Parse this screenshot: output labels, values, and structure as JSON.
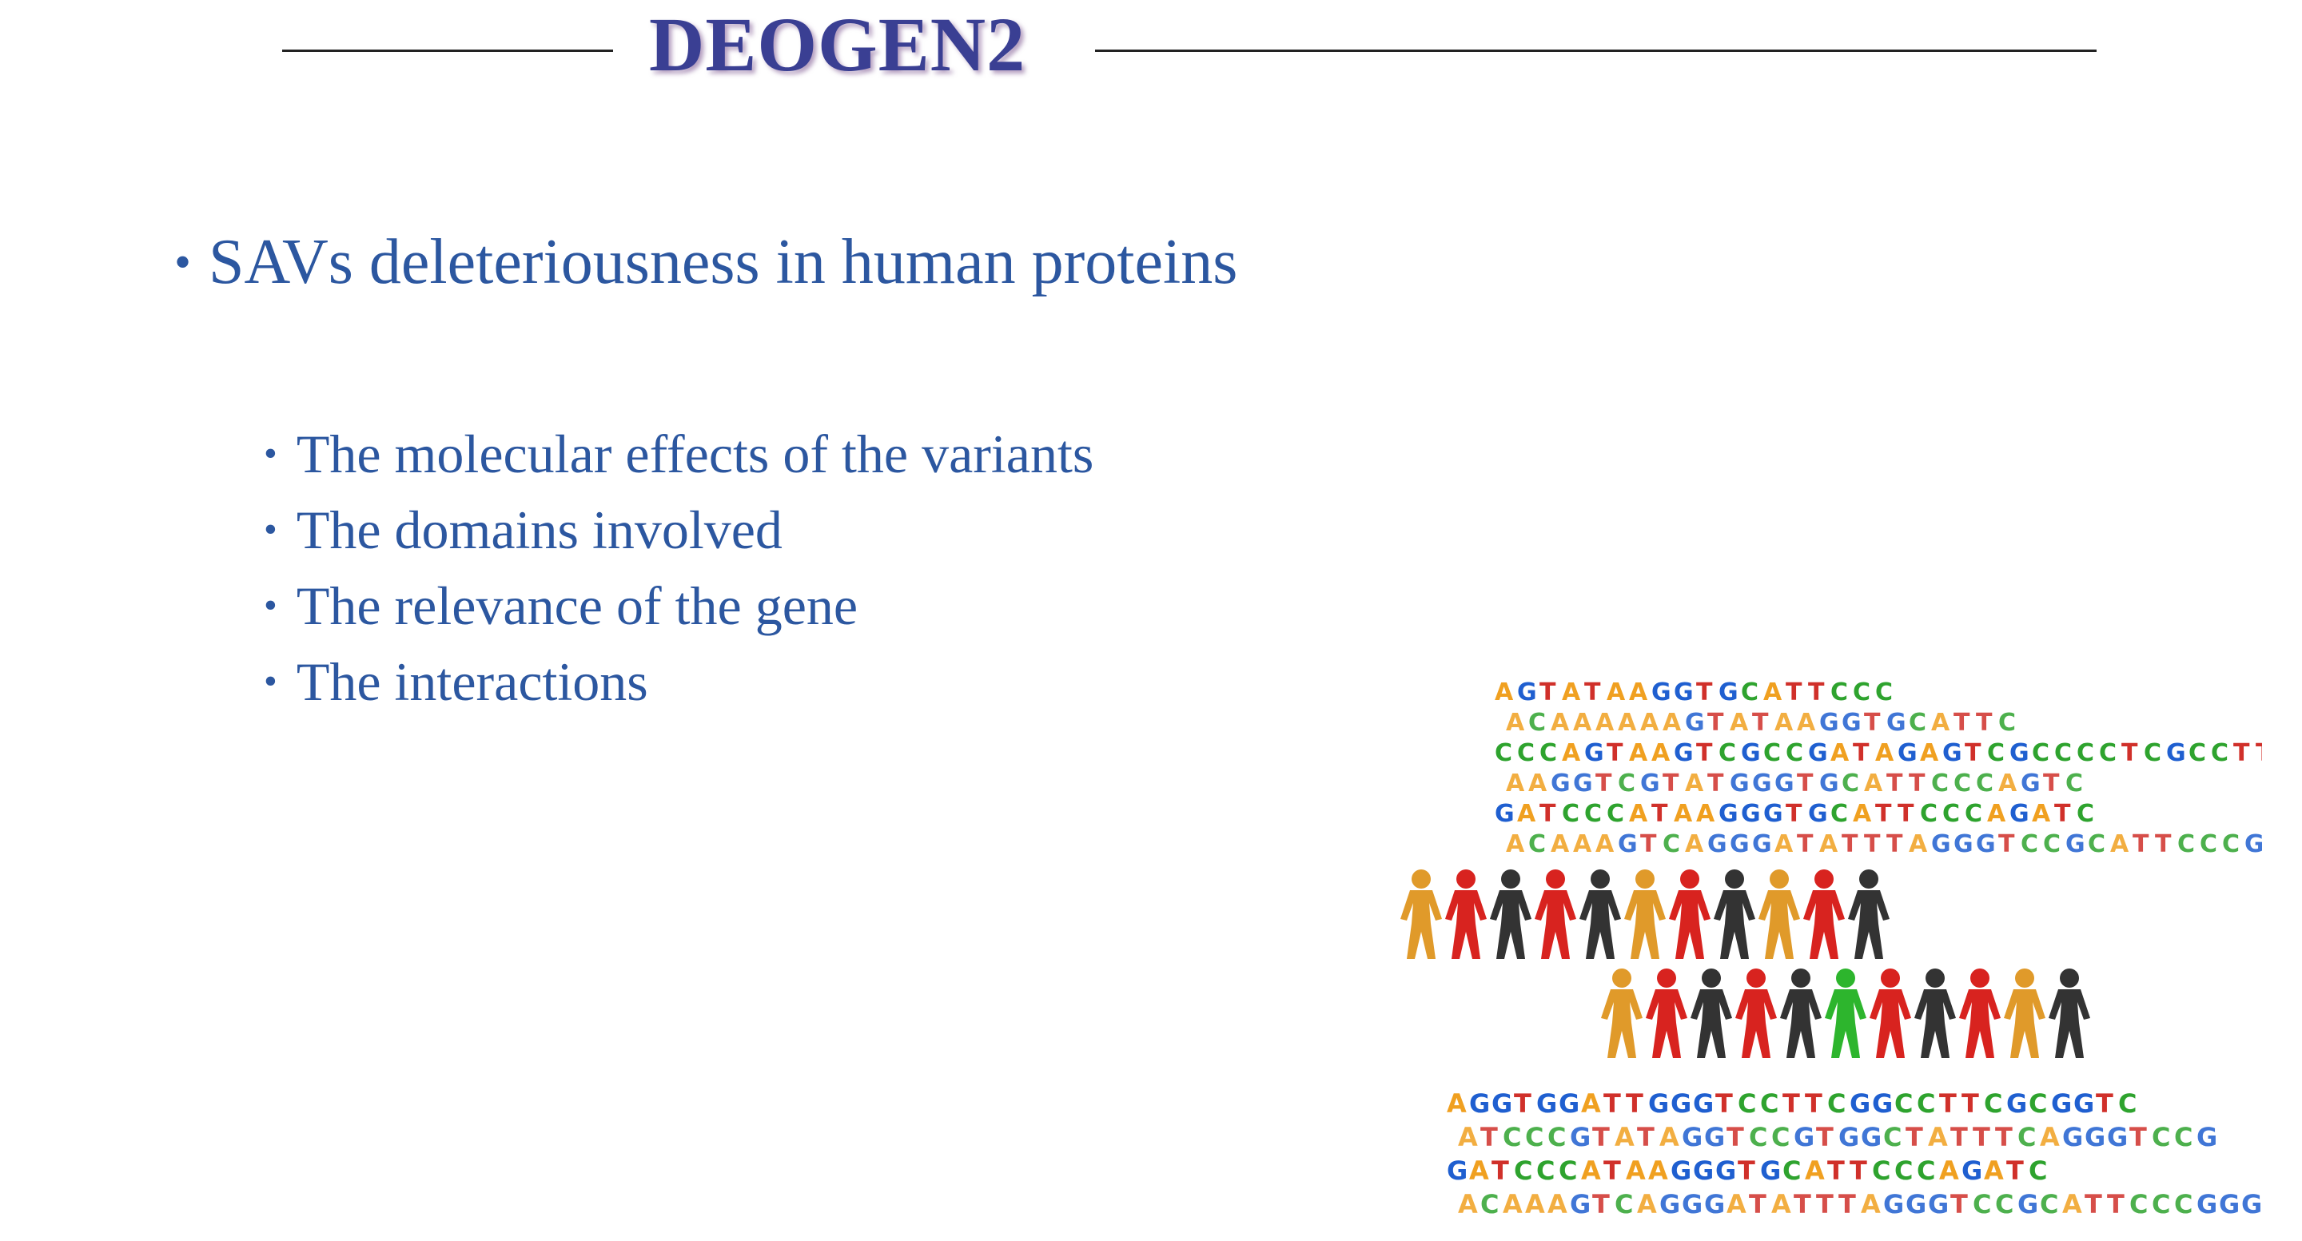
{
  "slide": {
    "title": "DEOGEN2",
    "main_bullet": "SAVs deleteriousness in human proteins",
    "sub_bullets": [
      "The molecular effects of the variants",
      "The domains involved",
      "The relevance of the gene",
      "The interactions"
    ],
    "bullet_glyph": "•"
  },
  "colors": {
    "title": "#3a3f93",
    "text": "#2c57a0",
    "base_A": "#f0a020",
    "base_C": "#2ea32e",
    "base_G": "#1f5fd0",
    "base_T": "#d0302a",
    "figure_orange": "#e09a2a",
    "figure_red": "#d8231f",
    "figure_dark": "#333333",
    "figure_green": "#2db52d"
  },
  "image": {
    "name": "dna-people-illustration",
    "dna_rows_top": [
      "AGTATAAGGTGCATTCCC",
      "ACAAAAAAGTATAAGGTGCATTC",
      "CCCAGTAAGTCGCCGATAGAGTCGCCCCTCGCCTTGCGG",
      "AAGGTCGTATGGGTGCATTCCCAGTC",
      "GATCCCATAAGGGTGCATTCCCAGATC",
      "ACAAAGTCAGGGATATTTAGGGTCCGCATTCCCGGGT"
    ],
    "dna_rows_bottom": [
      "AGGTGGATTGGGTCCTTCGGCCTTCGCGGTC",
      "ATCCCGTATAGGTCCGTGGCTATTTCAGGGTCCG",
      "GATCCCATAAGGGTGCATTCCCAGATC",
      "ACAAAGTCAGGGATATTTAGGGTCCGCATTCCCGGGT"
    ]
  }
}
